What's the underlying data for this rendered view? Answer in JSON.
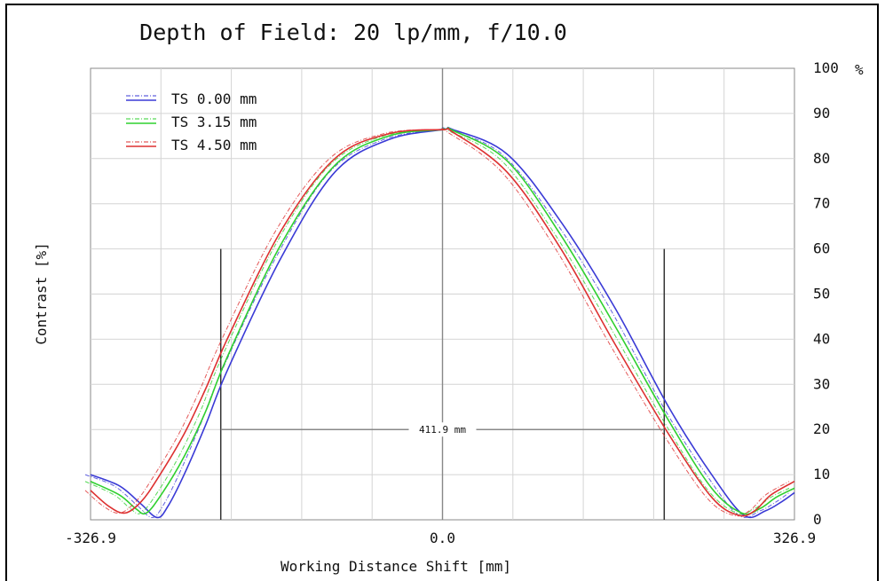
{
  "chart_data": {
    "type": "line",
    "title": "Depth of Field: 20 lp/mm, f/10.0",
    "xlabel": "Working Distance Shift [mm]",
    "ylabel": "Contrast [%]",
    "xlim": [
      -326.9,
      326.9
    ],
    "ylim": [
      0,
      100
    ],
    "x_tick_labels": [
      "-326.9",
      "0.0",
      "326.9"
    ],
    "y_tick_labels": [
      "0",
      "10",
      "20",
      "30",
      "40",
      "50",
      "60",
      "70",
      "80",
      "90",
      "100"
    ],
    "y_unit": "%",
    "grid": true,
    "legend_position": "top-left",
    "series": [
      {
        "name": "TS 0.00 mm",
        "color": "#3a3ad6",
        "sagittal_style": "dash-dot",
        "x": [
          -326.9,
          -300,
          -280,
          -265,
          -255,
          -240,
          -220,
          -200,
          -150,
          -100,
          -50,
          0,
          10,
          60,
          110,
          160,
          210,
          250,
          280,
          300,
          315,
          326.9
        ],
        "values": [
          10,
          7.5,
          3.5,
          0.5,
          3,
          10,
          21,
          33,
          58,
          77,
          84.2,
          86.4,
          86.4,
          81,
          66,
          47,
          25,
          10,
          1,
          2,
          4,
          6
        ]
      },
      {
        "name": "TS 3.15 mm",
        "color": "#2fd02f",
        "sagittal_style": "dash-dot",
        "x": [
          -326.9,
          -300,
          -285,
          -275,
          -260,
          -240,
          -220,
          -200,
          -150,
          -100,
          -50,
          0,
          10,
          60,
          110,
          160,
          210,
          250,
          278,
          295,
          310,
          326.9
        ],
        "values": [
          8.5,
          5.5,
          2.5,
          1.5,
          6,
          14,
          24,
          36,
          61,
          78.5,
          85,
          86.4,
          86.2,
          79.5,
          63,
          43,
          22,
          7,
          1.5,
          2.5,
          5,
          7
        ]
      },
      {
        "name": "TS 4.50 mm",
        "color": "#dd3030",
        "sagittal_style": "dash-dot",
        "x": [
          -326.9,
          -310,
          -295,
          -280,
          -265,
          -240,
          -220,
          -200,
          -150,
          -100,
          -50,
          0,
          10,
          60,
          110,
          160,
          210,
          250,
          275,
          290,
          305,
          326.9
        ],
        "values": [
          6.5,
          3,
          1.5,
          4,
          9,
          19,
          29,
          40,
          64,
          80,
          85.5,
          86.4,
          85.8,
          77,
          60,
          39,
          19,
          5,
          1,
          2,
          5.5,
          8.5
        ]
      }
    ],
    "annotation": {
      "text": "411.9 mm",
      "y": 20,
      "x_range": [
        -205.95,
        205.95
      ],
      "marker_height": 60
    }
  }
}
